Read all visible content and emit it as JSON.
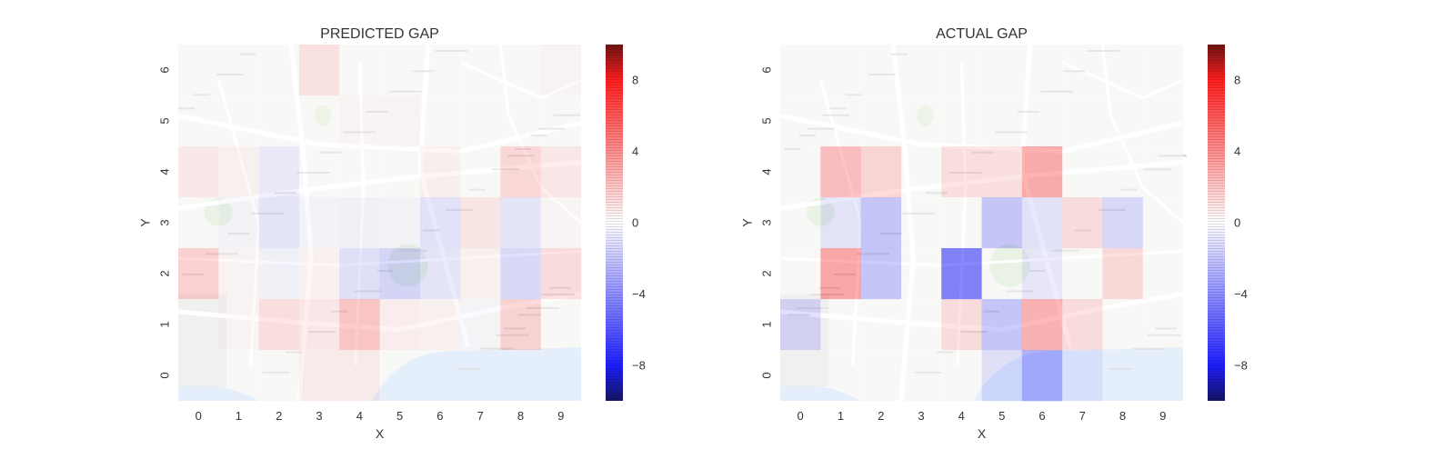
{
  "chart_data": [
    {
      "type": "heatmap",
      "title": "PREDICTED GAP",
      "xlabel": "X",
      "ylabel": "Y",
      "x_ticks": [
        "0",
        "1",
        "2",
        "3",
        "4",
        "5",
        "6",
        "7",
        "8",
        "9"
      ],
      "y_ticks": [
        "0",
        "1",
        "2",
        "3",
        "4",
        "5",
        "6"
      ],
      "colorbar": {
        "min": -10,
        "max": 10,
        "ticks": [
          -8,
          -4,
          0,
          4,
          8
        ],
        "tick_labels": [
          "−8",
          "−4",
          "0",
          "4",
          "8"
        ]
      },
      "values_by_row_from_top": [
        [
          0,
          0,
          0,
          1.6,
          0,
          0,
          0,
          0,
          0,
          0.4
        ],
        [
          0,
          0,
          0,
          0,
          0.3,
          0.4,
          0,
          0,
          0,
          0
        ],
        [
          1.1,
          0.6,
          -1.1,
          0,
          0,
          0,
          0.7,
          0,
          2.4,
          1.2
        ],
        [
          0,
          -0.4,
          -1.4,
          -0.4,
          -0.6,
          -0.4,
          -1.6,
          1.3,
          -1.4,
          0.3
        ],
        [
          2.8,
          0.4,
          -0.6,
          0.5,
          -1.8,
          -2.6,
          -1.4,
          0.6,
          -2.2,
          2.0
        ],
        [
          0,
          0.3,
          1.8,
          1.2,
          3.6,
          0.8,
          0.6,
          -0.3,
          2.7,
          0
        ],
        [
          0,
          0,
          0,
          1.0,
          1.0,
          0,
          0,
          0,
          0,
          0
        ]
      ]
    },
    {
      "type": "heatmap",
      "title": "ACTUAL GAP",
      "xlabel": "X",
      "ylabel": "Y",
      "x_ticks": [
        "0",
        "1",
        "2",
        "3",
        "4",
        "5",
        "6",
        "7",
        "8",
        "9"
      ],
      "y_ticks": [
        "0",
        "1",
        "2",
        "3",
        "4",
        "5",
        "6"
      ],
      "colorbar": {
        "min": -10,
        "max": 10,
        "ticks": [
          -8,
          -4,
          0,
          4,
          8
        ],
        "tick_labels": [
          "−8",
          "−4",
          "0",
          "4",
          "8"
        ]
      },
      "values_by_row_from_top": [
        [
          0,
          0,
          0,
          0,
          0,
          0,
          0,
          0,
          0,
          0
        ],
        [
          0,
          0,
          0,
          0,
          0,
          0,
          0,
          0,
          0,
          0
        ],
        [
          0,
          4.2,
          2.6,
          0,
          1.8,
          1.8,
          5.5,
          0,
          0,
          0
        ],
        [
          0,
          -1.5,
          -3.6,
          0,
          0,
          -3.6,
          -1.6,
          2.0,
          -2.4,
          0
        ],
        [
          0,
          5.8,
          -3.6,
          0,
          -8.5,
          0,
          -1.3,
          0,
          2.2,
          0
        ],
        [
          -2.2,
          0,
          0,
          0,
          2.0,
          -3.6,
          5.0,
          2.0,
          0,
          0
        ],
        [
          0,
          0,
          0,
          0,
          0,
          -1.8,
          -5.0,
          -1.0,
          0,
          0
        ]
      ]
    }
  ]
}
